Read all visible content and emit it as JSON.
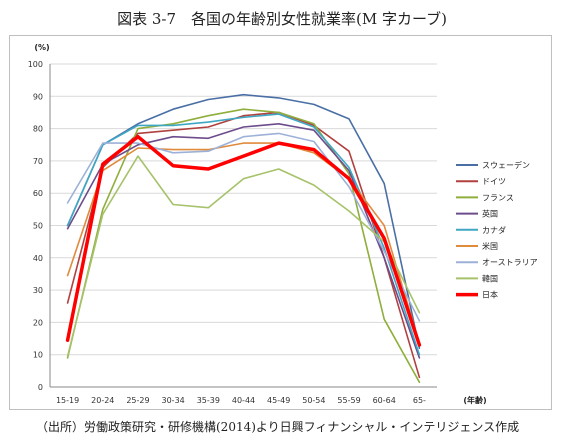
{
  "title": "図表 3-7　各国の年齢別女性就業率(M 字カーブ)",
  "caption": "（出所）労働政策研究・研修機構(2014)より日興フィナンシャル・インテリジェンス作成",
  "chart_data": {
    "type": "line",
    "title": "",
    "ylabel": "(%)",
    "xlabel": "(年齢)",
    "ylim": [
      0,
      100
    ],
    "yticks": [
      0,
      10,
      20,
      30,
      40,
      50,
      60,
      70,
      80,
      90,
      100
    ],
    "grid": true,
    "legend_position": "right",
    "categories": [
      "15-19",
      "20-24",
      "25-29",
      "30-34",
      "35-39",
      "40-44",
      "45-49",
      "50-54",
      "55-59",
      "60-64",
      "65-"
    ],
    "series": [
      {
        "name": "スウェーデン",
        "color": "#4a6fa5",
        "emphasis": false,
        "values": [
          50,
          75,
          81.5,
          86,
          89,
          90.5,
          89.5,
          87.5,
          83,
          63,
          12
        ]
      },
      {
        "name": "ドイツ",
        "color": "#b0413e",
        "emphasis": false,
        "values": [
          26,
          68,
          78.5,
          79.5,
          80.5,
          84,
          85,
          81,
          73,
          40,
          3
        ]
      },
      {
        "name": "フランス",
        "color": "#8fae3c",
        "emphasis": false,
        "values": [
          9,
          55,
          80,
          81.5,
          84,
          86,
          85,
          81.5,
          66,
          21,
          1.5
        ]
      },
      {
        "name": "英国",
        "color": "#6d4c8c",
        "emphasis": false,
        "values": [
          49,
          69,
          75,
          77.5,
          77,
          80.5,
          81.5,
          79.5,
          67,
          40,
          9
        ]
      },
      {
        "name": "カナダ",
        "color": "#3fa7c4",
        "emphasis": false,
        "values": [
          50,
          75,
          81,
          81,
          82,
          83.5,
          84.5,
          80.5,
          68,
          43,
          10
        ]
      },
      {
        "name": "米国",
        "color": "#e08a3c",
        "emphasis": false,
        "values": [
          34.5,
          67,
          74,
          73.5,
          73.5,
          75.5,
          75.5,
          72.5,
          64.5,
          50,
          13.5
        ]
      },
      {
        "name": "オーストラリア",
        "color": "#9db1d8",
        "emphasis": false,
        "values": [
          57,
          75.5,
          75.5,
          72.5,
          73,
          77.5,
          78.5,
          76,
          62,
          42,
          20.5
        ]
      },
      {
        "name": "韓国",
        "color": "#a6c26a",
        "emphasis": false,
        "values": [
          9.5,
          53.5,
          71.5,
          56.5,
          55.5,
          64.5,
          67.5,
          62.5,
          54.5,
          45,
          23
        ]
      },
      {
        "name": "日本",
        "color": "#ff0000",
        "emphasis": true,
        "values": [
          14.5,
          69,
          77.5,
          68.5,
          67.5,
          71.5,
          75.5,
          73.5,
          64.5,
          46,
          13
        ]
      }
    ]
  }
}
